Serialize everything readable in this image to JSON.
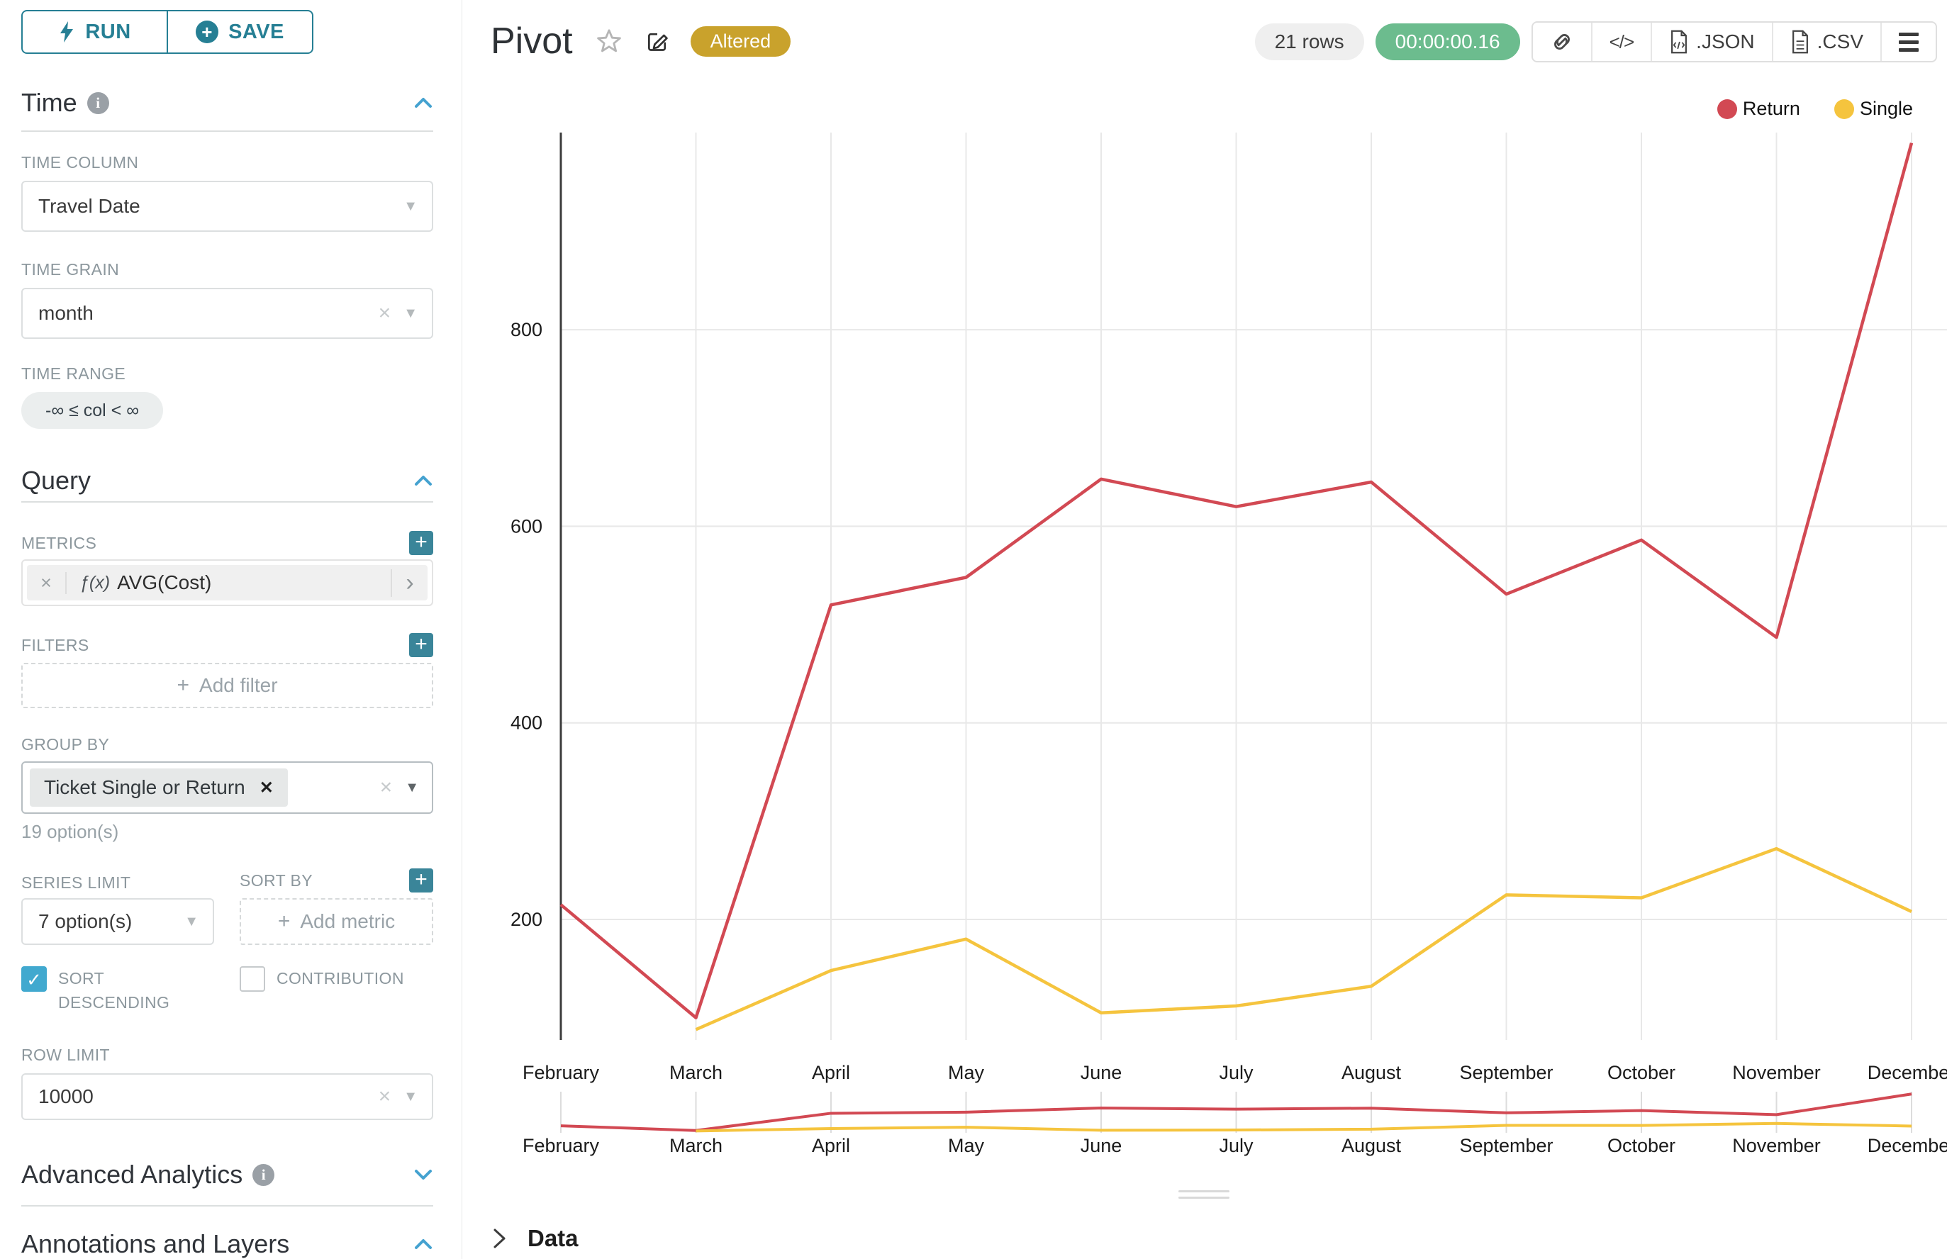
{
  "colors": {
    "accent_teal": "#267f94",
    "plus_button_teal": "#3a8599",
    "section_caret_blue": "#45a2d0",
    "checkbox_checked": "#41a9cf",
    "altered_gold": "#c9a22c",
    "timer_green": "#6cbc8e",
    "return_red": "#d24953",
    "single_yellow": "#f5c43e",
    "gridline": "#e8e8e8",
    "axis": "#3d3d3d"
  },
  "icons": {
    "plus": "+",
    "caret_down": "▼",
    "clear_x": "×",
    "chip_remove": "✕",
    "chevron_right": "›",
    "check": "✓",
    "code": "</>"
  },
  "sidebar": {
    "run_label": "RUN",
    "save_label": "SAVE",
    "time_section": "Time",
    "time_column_label": "TIME COLUMN",
    "time_column_value": "Travel Date",
    "time_grain_label": "TIME GRAIN",
    "time_grain_value": "month",
    "time_range_label": "TIME RANGE",
    "time_range_value": "-∞ ≤ col < ∞",
    "query_section": "Query",
    "metrics_label": "METRICS",
    "metric_fx": "ƒ(x)",
    "metric_value": "AVG(Cost)",
    "filters_label": "FILTERS",
    "add_filter_label": "Add filter",
    "group_by_label": "GROUP BY",
    "group_by_chip": "Ticket Single or Return",
    "group_by_hint": "19 option(s)",
    "series_limit_label": "SERIES LIMIT",
    "series_limit_value": "7 option(s)",
    "sort_by_label": "SORT BY",
    "add_metric_label": "Add metric",
    "sort_descending_label": "SORT DESCENDING",
    "sort_descending_checked": true,
    "contribution_label": "CONTRIBUTION",
    "contribution_checked": false,
    "row_limit_label": "ROW LIMIT",
    "row_limit_value": "10000",
    "advanced_section": "Advanced Analytics",
    "annotations_section": "Annotations and Layers"
  },
  "header": {
    "title": "Pivot",
    "altered_badge": "Altered",
    "row_count": "21 rows",
    "query_time": "00:00:00.16",
    "json_label": ".JSON",
    "csv_label": ".CSV"
  },
  "footer": {
    "data_label": "Data"
  },
  "chart_data": {
    "type": "line",
    "title": "",
    "xlabel": "",
    "ylabel": "",
    "x": [
      "February",
      "March",
      "April",
      "May",
      "June",
      "July",
      "August",
      "September",
      "October",
      "November",
      "December"
    ],
    "series": [
      {
        "name": "Return",
        "color": "#d24953",
        "values": [
          215,
          100,
          520,
          548,
          648,
          620,
          645,
          531,
          586,
          487,
          990
        ]
      },
      {
        "name": "Single",
        "color": "#f5c43e",
        "values": [
          null,
          88,
          148,
          180,
          105,
          112,
          132,
          225,
          222,
          272,
          208
        ]
      }
    ],
    "yticks": [
      200,
      400,
      600,
      800
    ],
    "ylim": [
      70,
      1000
    ],
    "grid": true,
    "legend_position": "top-right",
    "has_range_selector": true
  }
}
